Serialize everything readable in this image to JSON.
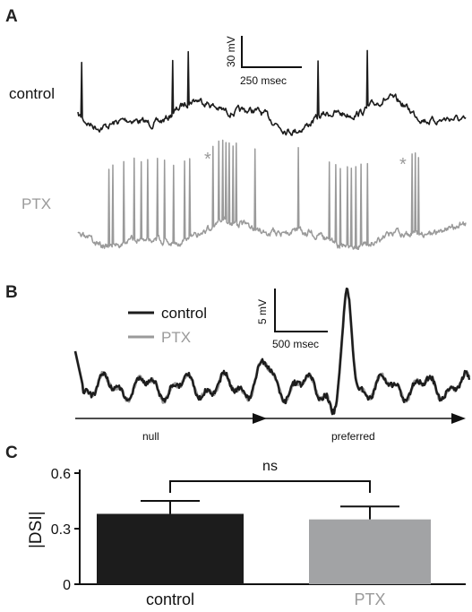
{
  "panels": {
    "a": {
      "letter": "A",
      "traces": [
        {
          "name": "control",
          "color": "#1c1c1c",
          "spikes": 5
        },
        {
          "name": "PTX",
          "color": "#9a9a9a",
          "spikes": 31,
          "asterisks": 2
        }
      ],
      "scalebar": {
        "y_label": "30 mV",
        "x_label": "250 msec"
      },
      "asterisk": "*"
    },
    "b": {
      "letter": "B",
      "legend": [
        {
          "name": "control",
          "color": "#1c1c1c"
        },
        {
          "name": "PTX",
          "color": "#9a9a9a"
        }
      ],
      "scalebar": {
        "y_label": "5 mV",
        "x_label": "500 msec"
      },
      "direction_labels": [
        "null",
        "preferred"
      ]
    },
    "c": {
      "letter": "C",
      "significance": "ns"
    }
  },
  "chart_data": {
    "type": "bar",
    "title": "",
    "ylabel": "|DSI|",
    "xlabel": "",
    "categories": [
      "control",
      "PTX"
    ],
    "values": [
      0.38,
      0.35
    ],
    "errors": [
      0.07,
      0.07
    ],
    "colors": [
      "#1c1c1c",
      "#a2a3a5"
    ],
    "label_colors": [
      "#111111",
      "#9a9a9a"
    ],
    "yticks": [
      0,
      0.3,
      0.6
    ],
    "ytick_labels": [
      "0",
      "0.3",
      "0.6"
    ],
    "ylim": [
      0,
      0.6
    ],
    "grid": false
  }
}
